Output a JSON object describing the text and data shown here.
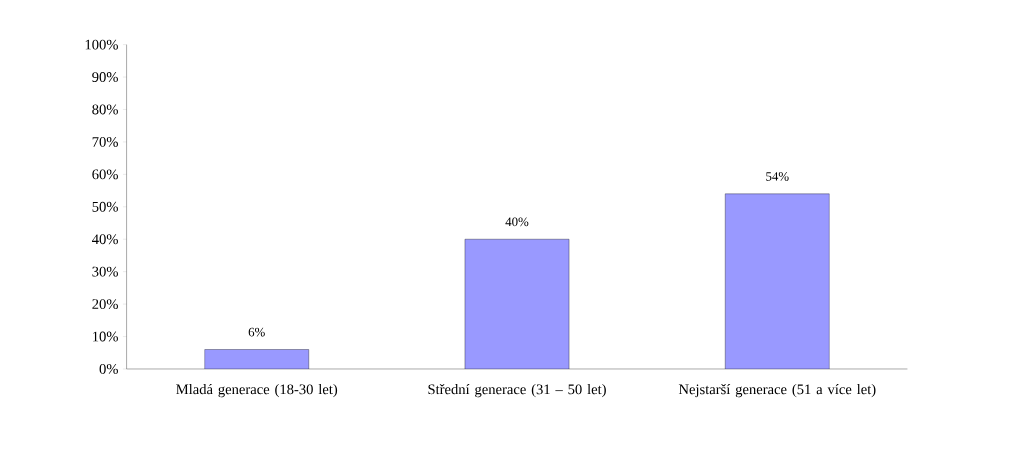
{
  "chart_data": {
    "type": "bar",
    "categories": [
      "Mladá generace (18-30 let)",
      "Střední generace (31 – 50 let)",
      "Nejstarší generace (51 a více let)"
    ],
    "values": [
      6,
      40,
      54
    ],
    "value_labels": [
      "6%",
      "40%",
      "54%"
    ],
    "color": "#9999ff",
    "ylim": [
      0,
      100
    ],
    "yticks": [
      {
        "value": 0,
        "label": "0%"
      },
      {
        "value": 10,
        "label": "10%"
      },
      {
        "value": 20,
        "label": "20%"
      },
      {
        "value": 30,
        "label": "30%"
      },
      {
        "value": 40,
        "label": "40%"
      },
      {
        "value": 50,
        "label": "50%"
      },
      {
        "value": 60,
        "label": "60%"
      },
      {
        "value": 70,
        "label": "70%"
      },
      {
        "value": 80,
        "label": "80%"
      },
      {
        "value": 90,
        "label": "90%"
      },
      {
        "value": 100,
        "label": "100%"
      }
    ],
    "grid": false
  }
}
